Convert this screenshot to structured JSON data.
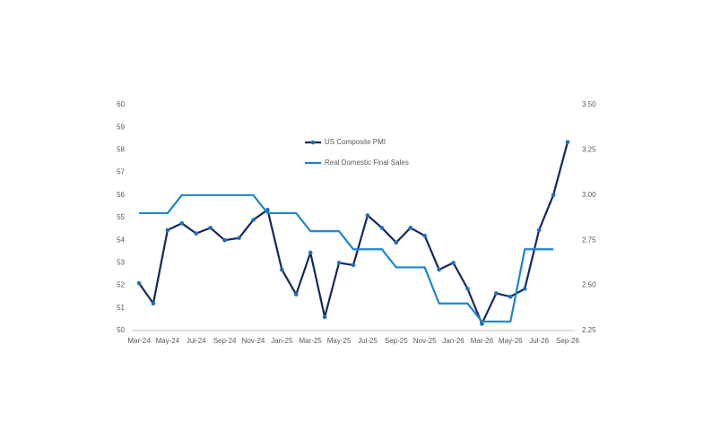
{
  "chart_data": {
    "type": "line",
    "categories": [
      "Mar-24",
      null,
      "May-24",
      null,
      "Jul-24",
      null,
      "Sep-24",
      null,
      "Nov-24",
      null,
      "Jan-25",
      null,
      "Mar-25",
      null,
      "May-25",
      null,
      "Jul-25",
      null,
      "Sep-25",
      null,
      "Nov-25",
      null,
      "Jan-26",
      null,
      "Mar-26",
      null,
      "May-26",
      null,
      "Jul-26",
      null,
      "Sep-26"
    ],
    "series": [
      {
        "name": "US Composite PMI",
        "color": "#15285e",
        "marker_color": "#1f6fc0",
        "values": [
          52.1,
          51.2,
          54.45,
          54.75,
          54.3,
          54.55,
          54.0,
          54.1,
          54.9,
          55.35,
          52.7,
          51.6,
          53.45,
          50.6,
          53.0,
          52.9,
          55.1,
          54.55,
          53.9,
          54.55,
          54.2,
          52.7,
          53.0,
          51.85,
          50.3,
          51.65,
          51.5,
          51.85,
          54.45,
          56.0,
          58.35
        ]
      },
      {
        "name": "Real Domestic Final Sales",
        "color": "#1c86d0",
        "axis": "y2",
        "values": [
          2.9,
          2.9,
          2.9,
          3.0,
          3.0,
          3.0,
          3.0,
          3.0,
          3.0,
          2.9,
          2.9,
          2.9,
          2.8,
          2.8,
          2.8,
          2.7,
          2.7,
          2.7,
          2.6,
          2.6,
          2.6,
          2.4,
          2.4,
          2.4,
          2.3,
          2.3,
          2.3,
          2.7,
          2.7,
          2.7,
          null
        ]
      }
    ],
    "ylim": [
      50,
      60
    ],
    "yticks": [
      50,
      51,
      52,
      53,
      54,
      55,
      56,
      57,
      58,
      59,
      60
    ],
    "y2lim": [
      2.25,
      3.5
    ],
    "y2ticks": [
      2.25,
      {
        "value": 2.5,
        "label": "2.50"
      },
      2.75,
      {
        "value": 3.0,
        "label": "3.00"
      },
      3.25,
      {
        "value": 3.5,
        "label": "3.50"
      }
    ]
  }
}
